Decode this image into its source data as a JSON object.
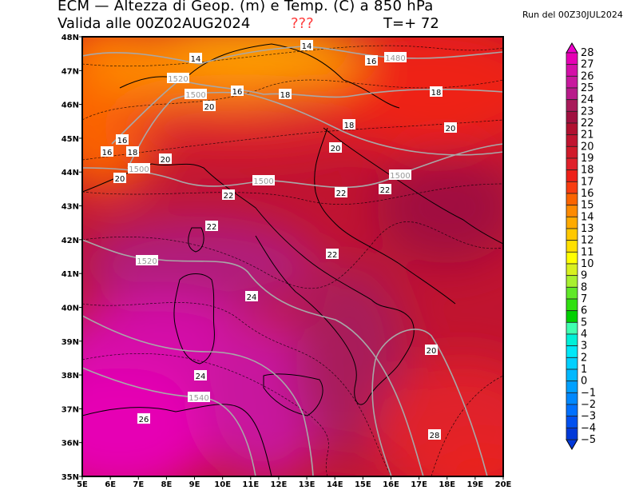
{
  "header": {
    "title": "ECM — Altezza di Geop. (m) e Temp. (C) a 850 hPa",
    "valid": "Valida alle 00Z02AUG2024",
    "unknown_marker": "???",
    "forecast_step": "T=+ 72",
    "run": "Run del 00Z30JUL2024"
  },
  "map": {
    "lon_labels": [
      "5E",
      "6E",
      "7E",
      "8E",
      "9E",
      "10E",
      "11E",
      "12E",
      "13E",
      "14E",
      "15E",
      "16E",
      "17E",
      "18E",
      "19E",
      "20E"
    ],
    "lat_labels": [
      "35N",
      "36N",
      "37N",
      "38N",
      "39N",
      "40N",
      "41N",
      "42N",
      "43N",
      "44N",
      "45N",
      "46N",
      "47N",
      "48N"
    ],
    "temperature_labels": [
      "14",
      "14",
      "16",
      "16",
      "16",
      "16",
      "18",
      "18",
      "18",
      "18",
      "20",
      "20",
      "20",
      "20",
      "20",
      "22",
      "22",
      "22",
      "22",
      "22",
      "24",
      "24",
      "26",
      "28",
      "20"
    ],
    "geopotential_labels": [
      "1480",
      "1500",
      "1500",
      "1500",
      "1500",
      "1520",
      "1520",
      "1540"
    ],
    "geopotential_line_color": "#a8a8a8",
    "temperature_contour_style": "dashed black"
  },
  "colorbar": {
    "labels": [
      "28",
      "27",
      "26",
      "25",
      "24",
      "23",
      "22",
      "21",
      "20",
      "19",
      "18",
      "17",
      "16",
      "15",
      "14",
      "13",
      "12",
      "11",
      "10",
      "9",
      "8",
      "7",
      "6",
      "5",
      "4",
      "3",
      "2",
      "1",
      "0",
      "−1",
      "−2",
      "−3",
      "−4",
      "−5"
    ],
    "colors": [
      "#e600b4",
      "#d40fa8",
      "#c8189e",
      "#b81a8a",
      "#a81a5a",
      "#a01040",
      "#b01030",
      "#c01430",
      "#d01a2a",
      "#e0202a",
      "#ee2018",
      "#f83c10",
      "#fb6400",
      "#fd8a00",
      "#ffaa00",
      "#ffc800",
      "#ffe000",
      "#ffff00",
      "#d8f020",
      "#a8f030",
      "#60e828",
      "#30e010",
      "#00d000",
      "#40ffb0",
      "#00f0d8",
      "#00e8f8",
      "#00d0ff",
      "#00b8ff",
      "#00a0ff",
      "#0088ff",
      "#0070ff",
      "#0050f0",
      "#0038d8"
    ],
    "top_arrow_color": "#ee00cc",
    "bottom_arrow_color": "#0038d8"
  }
}
